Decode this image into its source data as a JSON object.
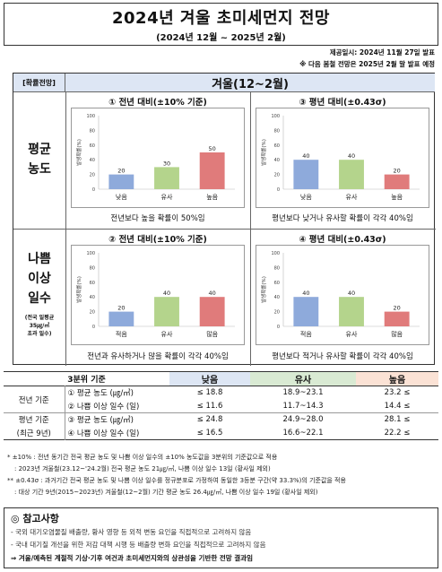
{
  "title": "2024년 겨울 초미세먼지 전망",
  "subtitle": "(2024년 12월 ~ 2025년 2월)",
  "provided": "제공일시: 2024년 11월 27일 발표",
  "next_note": "※ 다음 봄철 전망은 2025년 2월 말 발표 예정",
  "grid": {
    "left_header": "[확률전망]",
    "main_header": "겨울(12~2월)",
    "row1_label": [
      "평균",
      "농도"
    ],
    "row2_label": [
      "나쁨",
      "이상",
      "일수"
    ],
    "row2_note": [
      "(전국 일평균",
      "35㎍/㎥",
      "초과 일수)"
    ]
  },
  "panels": [
    {
      "title": "① 전년 대비(±10% 기준)",
      "caption": "전년보다 높을 확률이 50%임"
    },
    {
      "title": "③ 평년 대비(±0.43σ)",
      "caption": "평년보다 낮거나 유사할 확률이 각각 40%임"
    },
    {
      "title": "② 전년 대비(±10% 기준)",
      "caption": "전년과 유사하거나 많을 확률이 각각 40%임"
    },
    {
      "title": "④ 평년 대비(±0.43σ)",
      "caption": "평년보다 적거나 유사할 확률이 각각 40%임"
    }
  ],
  "chart_data": [
    {
      "type": "bar",
      "ylabel": "발생확률(%)",
      "ylim": [
        0,
        100
      ],
      "yticks": [
        0,
        20,
        40,
        60,
        80,
        100
      ],
      "categories": [
        "낮음",
        "유사",
        "높음"
      ],
      "values": [
        20,
        30,
        50
      ],
      "colors": [
        "#8eaadb",
        "#b4d48c",
        "#e07b7b"
      ]
    },
    {
      "type": "bar",
      "ylabel": "발생확률(%)",
      "ylim": [
        0,
        100
      ],
      "yticks": [
        0,
        20,
        40,
        60,
        80,
        100
      ],
      "categories": [
        "낮음",
        "유사",
        "높음"
      ],
      "values": [
        40,
        40,
        20
      ],
      "colors": [
        "#8eaadb",
        "#b4d48c",
        "#e07b7b"
      ]
    },
    {
      "type": "bar",
      "ylabel": "발생확률(%)",
      "ylim": [
        0,
        100
      ],
      "yticks": [
        0,
        20,
        40,
        60,
        80,
        100
      ],
      "categories": [
        "적음",
        "유사",
        "많음"
      ],
      "values": [
        20,
        40,
        40
      ],
      "colors": [
        "#8eaadb",
        "#b4d48c",
        "#e07b7b"
      ]
    },
    {
      "type": "bar",
      "ylabel": "발생확률(%)",
      "ylim": [
        0,
        100
      ],
      "yticks": [
        0,
        20,
        40,
        60,
        80,
        100
      ],
      "categories": [
        "적음",
        "유사",
        "많음"
      ],
      "values": [
        40,
        40,
        20
      ],
      "colors": [
        "#8eaadb",
        "#b4d48c",
        "#e07b7b"
      ]
    }
  ],
  "table": {
    "header": [
      "3분위 기준",
      "낮음",
      "유사",
      "높음"
    ],
    "group1": "전년 기준",
    "group2a": "평년 기준",
    "group2b": "(최근 9년)",
    "rows": [
      {
        "item": "① 평균 농도 (㎍/㎥)",
        "low": "≤ 18.8",
        "mid": "18.9~23.1",
        "high": "23.2 ≤"
      },
      {
        "item": "② 나쁨 이상 일수 (일)",
        "low": "≤ 11.6",
        "mid": "11.7~14.3",
        "high": "14.4 ≤"
      },
      {
        "item": "③ 평균 농도 (㎍/㎥)",
        "low": "≤ 24.8",
        "mid": "24.9~28.0",
        "high": "28.1 ≤"
      },
      {
        "item": "④ 나쁨 이상 일수 (일)",
        "low": "≤ 16.5",
        "mid": "16.6~22.1",
        "high": "22.2 ≤"
      }
    ]
  },
  "notes": [
    "* ±10% : 전년 동기간 전국 평균 농도 및 나쁨 이상 일수의 ±10% 농도값을 3분위의 기준값으로 적용",
    ": 2023년 겨울철(23.12~'24.2월) 전국 평균 농도 21㎍/㎥, 나쁨 이상 일수 13일 (황사일 제외)",
    "** ±0.43σ : 과거기간 전국 평균 농도 및 나쁨 이상 일수를 정규분포로 가정하여 동일한 3등분 구간(약 33.3%)의 기준값을 적용",
    ": 대상 기간 9년(2015~2023년) 겨울철(12~2월) 기간 평균 농도 26.4㎍/㎥, 나쁨 이상 일수 19일 (황사일 제외)"
  ],
  "references": {
    "title": "◎ 참고사항",
    "items": [
      "- 국외 대기오염물질 배출량, 황사 영향 등 외적 변동 요인을 직접적으로 고려하지 않음",
      "- 국내 대기질 개선을 위한 저감 대책 시행 등 배출량 변화 요인을 직접적으로 고려하지 않음",
      "⇒ 겨울/예측된 계절적 기상·기후 여건과 초미세먼지와의 상관성을 기반한 전망 결과임"
    ]
  }
}
